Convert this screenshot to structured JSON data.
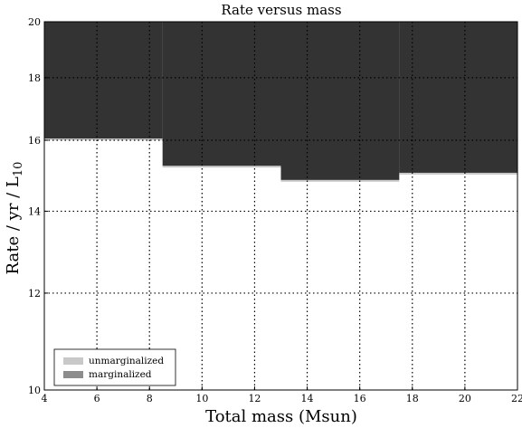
{
  "chart_data": {
    "type": "area",
    "title": "Rate versus mass",
    "xlabel": "Total mass (Msun)",
    "ylabel": "Rate / yr / L10",
    "ylabel_parts": {
      "main": "Rate / yr / L",
      "sub": "10"
    },
    "xlim": [
      4,
      22
    ],
    "ylim": [
      10,
      20
    ],
    "y_scale": "log",
    "x_ticks": [
      4,
      6,
      8,
      10,
      12,
      14,
      16,
      18,
      20,
      22
    ],
    "x_tick_labels": [
      "4",
      "6",
      "8",
      "10",
      "12",
      "14",
      "16",
      "18",
      "20",
      "22"
    ],
    "y_ticks": [
      10,
      12,
      14,
      16,
      18,
      20
    ],
    "y_tick_labels": [
      "10",
      "12",
      "14",
      "16",
      "18",
      "20"
    ],
    "grid": true,
    "grid_style": "dotted",
    "legend_position": "lower-left",
    "series": [
      {
        "name": "unmarginalized",
        "color": "#c8c8c8",
        "steps": [
          {
            "x_start": 4,
            "x_end": 8.5,
            "y": 16.0
          },
          {
            "x_start": 8.5,
            "x_end": 13.0,
            "y": 15.2
          },
          {
            "x_start": 13.0,
            "x_end": 17.5,
            "y": 14.8
          },
          {
            "x_start": 17.5,
            "x_end": 22,
            "y": 15.0
          }
        ]
      },
      {
        "name": "marginalized",
        "color": "#8c8c8c",
        "steps": [
          {
            "x_start": 4,
            "x_end": 8.5,
            "y": 16.03
          },
          {
            "x_start": 8.5,
            "x_end": 13.0,
            "y": 15.24
          },
          {
            "x_start": 13.0,
            "x_end": 17.5,
            "y": 14.84
          },
          {
            "x_start": 17.5,
            "x_end": 22,
            "y": 15.03
          }
        ]
      }
    ],
    "excluded_region_color": "#333333"
  }
}
